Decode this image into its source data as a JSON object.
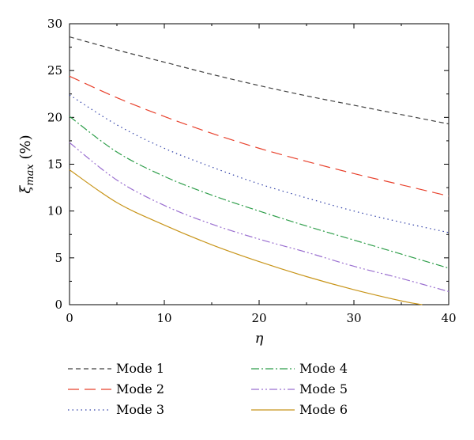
{
  "chart_data": {
    "type": "line",
    "xlabel": "η",
    "ylabel": "ξmax (%)",
    "ylabel_main": "ξ",
    "ylabel_sub": "max",
    "ylabel_unit": " (%)",
    "xlim": [
      0,
      40
    ],
    "ylim": [
      0,
      30
    ],
    "x_ticks": [
      0,
      10,
      20,
      30,
      40
    ],
    "y_ticks": [
      0,
      5,
      10,
      15,
      20,
      25,
      30
    ],
    "x_tick_labels": [
      "0",
      "10",
      "20",
      "30",
      "40"
    ],
    "y_tick_labels": [
      "0",
      "5",
      "10",
      "15",
      "20",
      "25",
      "30"
    ],
    "grid": false,
    "legend_position": "bottom",
    "series": [
      {
        "name": "Mode 1",
        "color": "#404040",
        "dash": "6,4",
        "x": [
          0,
          5,
          10,
          15,
          20,
          25,
          30,
          35,
          40
        ],
        "y": [
          28.6,
          27.2,
          25.9,
          24.6,
          23.4,
          22.3,
          21.3,
          20.3,
          19.3
        ]
      },
      {
        "name": "Mode 2",
        "color": "#e8412c",
        "dash": "14,7",
        "x": [
          0,
          5,
          10,
          15,
          20,
          25,
          30,
          35,
          40
        ],
        "y": [
          24.4,
          22.1,
          20.1,
          18.3,
          16.7,
          15.3,
          14.0,
          12.8,
          11.6
        ]
      },
      {
        "name": "Mode 3",
        "color": "#3040a8",
        "dash": "1.5,4",
        "x": [
          0,
          5,
          10,
          15,
          20,
          25,
          30,
          35,
          40
        ],
        "y": [
          22.4,
          19.2,
          16.7,
          14.7,
          12.9,
          11.4,
          10.0,
          8.8,
          7.7
        ]
      },
      {
        "name": "Mode 4",
        "color": "#2e9e4a",
        "dash": "10,3,2,3",
        "x": [
          0,
          5,
          10,
          15,
          20,
          25,
          30,
          35,
          40
        ],
        "y": [
          20.1,
          16.3,
          13.7,
          11.7,
          10.0,
          8.4,
          6.9,
          5.4,
          3.9
        ]
      },
      {
        "name": "Mode 5",
        "color": "#9a6fd0",
        "dash": "10,3,2,3,2,3",
        "x": [
          0,
          5,
          10,
          15,
          20,
          25,
          30,
          35,
          40
        ],
        "y": [
          17.3,
          13.3,
          10.6,
          8.6,
          7.0,
          5.6,
          4.1,
          2.8,
          1.4
        ]
      },
      {
        "name": "Mode 6",
        "color": "#c8951a",
        "dash": "",
        "x": [
          0,
          5,
          10,
          15,
          20,
          25,
          30,
          35,
          37.2
        ],
        "y": [
          14.4,
          10.9,
          8.5,
          6.4,
          4.6,
          3.0,
          1.6,
          0.4,
          0.0
        ]
      }
    ]
  }
}
